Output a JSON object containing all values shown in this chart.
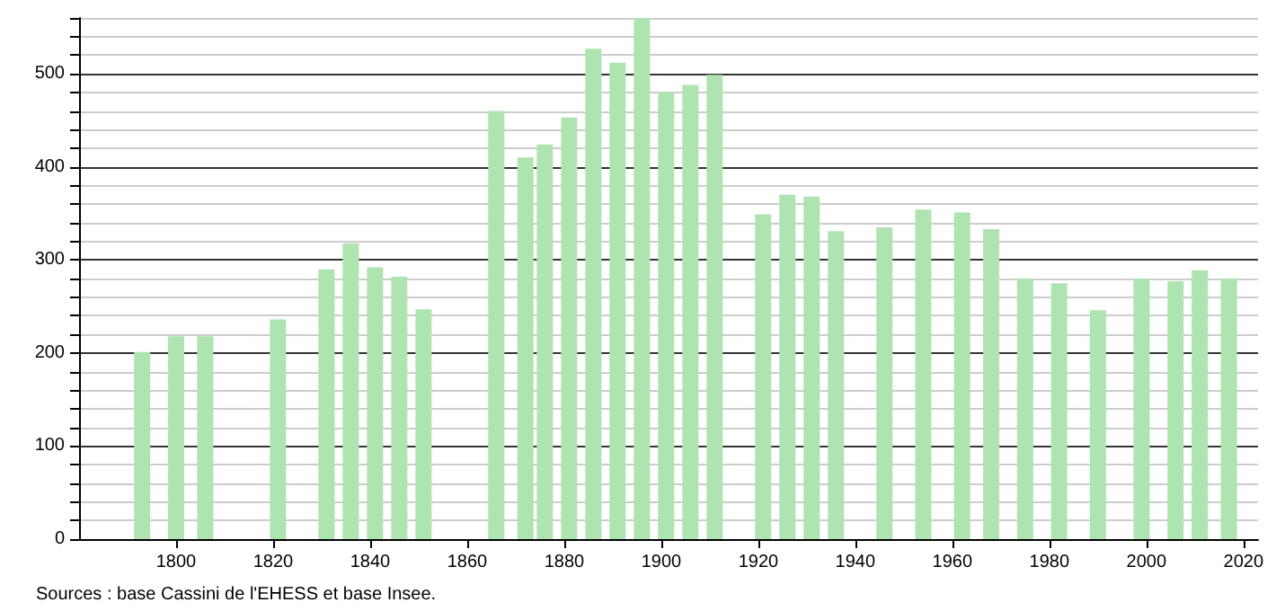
{
  "chart_data": {
    "type": "bar",
    "x": [
      1793,
      1800,
      1806,
      1821,
      1831,
      1836,
      1841,
      1846,
      1851,
      1866,
      1872,
      1876,
      1881,
      1886,
      1891,
      1896,
      1901,
      1906,
      1911,
      1921,
      1926,
      1931,
      1936,
      1946,
      1954,
      1962,
      1968,
      1975,
      1982,
      1990,
      1999,
      2006,
      2011,
      2017
    ],
    "values": [
      201,
      218,
      218,
      236,
      290,
      318,
      292,
      282,
      247,
      460,
      410,
      424,
      453,
      527,
      512,
      560,
      480,
      488,
      499,
      349,
      370,
      368,
      331,
      335,
      354,
      351,
      333,
      280,
      275,
      246,
      280,
      277,
      289,
      280
    ],
    "color": "#aee4b0",
    "xlim": [
      1780,
      2023
    ],
    "xticks": [
      1800,
      1820,
      1840,
      1860,
      1880,
      1900,
      1920,
      1940,
      1960,
      1980,
      2000,
      2020
    ],
    "ylim": [
      0,
      560
    ],
    "yticks": [
      0,
      {
        "value": 20,
        "label": null
      },
      {
        "value": 40,
        "label": null
      },
      {
        "value": 60,
        "label": null
      },
      {
        "value": 80,
        "label": null
      },
      100,
      {
        "value": 120,
        "label": null
      },
      {
        "value": 140,
        "label": null
      },
      {
        "value": 160,
        "label": null
      },
      {
        "value": 180,
        "label": null
      },
      200,
      {
        "value": 220,
        "label": null
      },
      {
        "value": 240,
        "label": null
      },
      {
        "value": 260,
        "label": null
      },
      {
        "value": 280,
        "label": null
      },
      300,
      {
        "value": 320,
        "label": null
      },
      {
        "value": 340,
        "label": null
      },
      {
        "value": 360,
        "label": null
      },
      {
        "value": 380,
        "label": null
      },
      400,
      {
        "value": 420,
        "label": null
      },
      {
        "value": 440,
        "label": null
      },
      {
        "value": 460,
        "label": null
      },
      {
        "value": 480,
        "label": null
      },
      500,
      {
        "value": 520,
        "label": null
      },
      {
        "value": 540,
        "label": null
      },
      {
        "value": 560,
        "label": null
      }
    ],
    "grid": "y",
    "annotations": [
      "Sources : base Cassini de l'EHESS et base Insee."
    ]
  }
}
